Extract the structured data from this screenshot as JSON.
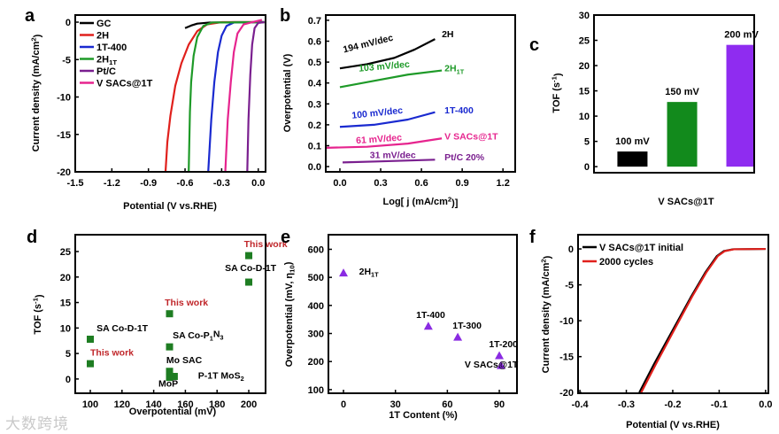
{
  "watermark": "大数跨境",
  "chart_data": [
    {
      "panel": "a",
      "type": "line",
      "xlabel": "Potential (V vs.RHE)",
      "ylabel": "Current density (mA/cm^{2})",
      "xlim": [
        -1.5,
        0.06
      ],
      "ylim": [
        -20,
        0.95
      ],
      "xticks": [
        -1.5,
        -1.2,
        -0.9,
        -0.6,
        -0.3,
        0.0
      ],
      "xtick_labels": [
        "-1.5",
        "-1.2",
        "-0.9",
        "-0.6",
        "-0.3",
        "0.0"
      ],
      "yticks": [
        0,
        -5,
        -10,
        -15,
        -20
      ],
      "ytick_labels": [
        "0",
        "-5",
        "-10",
        "-15",
        "-20"
      ],
      "legend": "top-left",
      "series": [
        {
          "name": "GC",
          "color": "#000000",
          "points": [
            [
              -0.6,
              -0.8
            ],
            [
              -0.55,
              -0.45
            ],
            [
              -0.5,
              -0.2
            ],
            [
              -0.4,
              -0.05
            ],
            [
              -0.2,
              0
            ],
            [
              0.05,
              0
            ]
          ]
        },
        {
          "name": "2H",
          "color": "#e0201c",
          "points": [
            [
              0.05,
              0
            ],
            [
              -0.3,
              0
            ],
            [
              -0.42,
              -0.3
            ],
            [
              -0.5,
              -1.2
            ],
            [
              -0.57,
              -3
            ],
            [
              -0.63,
              -5.5
            ],
            [
              -0.68,
              -8.5
            ],
            [
              -0.72,
              -12.5
            ],
            [
              -0.745,
              -16
            ],
            [
              -0.76,
              -20
            ]
          ]
        },
        {
          "name": "1T-400",
          "color": "#1a2ad0",
          "points": [
            [
              0.05,
              0
            ],
            [
              -0.2,
              -0.05
            ],
            [
              -0.26,
              -0.5
            ],
            [
              -0.3,
              -1.8
            ],
            [
              -0.33,
              -4
            ],
            [
              -0.36,
              -8
            ],
            [
              -0.385,
              -13
            ],
            [
              -0.41,
              -20
            ]
          ]
        },
        {
          "name": "2H_{1T}",
          "color": "#1e9a28",
          "points": [
            [
              0.05,
              0
            ],
            [
              -0.38,
              -0.05
            ],
            [
              -0.45,
              -0.5
            ],
            [
              -0.5,
              -2
            ],
            [
              -0.53,
              -4.5
            ],
            [
              -0.55,
              -8
            ],
            [
              -0.56,
              -12
            ],
            [
              -0.57,
              -20
            ]
          ]
        },
        {
          "name": "Pt/C",
          "color": "#7a1f8f",
          "points": [
            [
              0.05,
              0
            ],
            [
              0.0,
              -0.1
            ],
            [
              -0.03,
              -0.8
            ],
            [
              -0.05,
              -3
            ],
            [
              -0.065,
              -7
            ],
            [
              -0.08,
              -13
            ],
            [
              -0.09,
              -20
            ]
          ]
        },
        {
          "name": "V SACs@1T",
          "color": "#e6248e",
          "points": [
            [
              0.03,
              0.3
            ],
            [
              -0.05,
              0
            ],
            [
              -0.12,
              -0.3
            ],
            [
              -0.17,
              -1.5
            ],
            [
              -0.2,
              -4
            ],
            [
              -0.225,
              -8
            ],
            [
              -0.25,
              -13
            ],
            [
              -0.27,
              -20
            ]
          ]
        }
      ]
    },
    {
      "panel": "b",
      "type": "line",
      "xlabel": "Log[ j (mA/cm^{2})]",
      "ylabel": "Overpotential (V)",
      "xlim": [
        -0.104,
        1.29
      ],
      "ylim": [
        -0.025,
        0.725
      ],
      "xticks": [
        0.0,
        0.3,
        0.6,
        0.9,
        1.2
      ],
      "xtick_labels": [
        "0.0",
        "0.3",
        "0.6",
        "0.9",
        "1.2"
      ],
      "yticks": [
        0.0,
        0.1,
        0.2,
        0.3,
        0.4,
        0.5,
        0.6,
        0.7
      ],
      "ytick_labels": [
        "0.0",
        "0.1",
        "0.2",
        "0.3",
        "0.4",
        "0.5",
        "0.6",
        "0.7"
      ],
      "series": [
        {
          "name": "2H",
          "slope_label": "194 mV/dec",
          "color": "#000000",
          "points": [
            [
              0,
              0.47
            ],
            [
              0.2,
              0.49
            ],
            [
              0.4,
              0.52
            ],
            [
              0.55,
              0.56
            ],
            [
              0.7,
              0.61
            ]
          ],
          "name_pos": [
            0.75,
            0.62
          ],
          "slope_pos": [
            0.03,
            0.545
          ],
          "slope_rot": -14
        },
        {
          "name": "2H_{1T}",
          "slope_label": "103 mV/dec",
          "color": "#1e9a28",
          "points": [
            [
              0,
              0.38
            ],
            [
              0.25,
              0.41
            ],
            [
              0.5,
              0.44
            ],
            [
              0.75,
              0.46
            ]
          ],
          "name_pos": [
            0.77,
            0.455
          ],
          "slope_pos": [
            0.14,
            0.455
          ],
          "slope_rot": -5
        },
        {
          "name": "1T-400",
          "slope_label": "100 mV/dec",
          "color": "#1a2ad0",
          "points": [
            [
              0,
              0.19
            ],
            [
              0.25,
              0.2
            ],
            [
              0.5,
              0.225
            ],
            [
              0.7,
              0.26
            ]
          ],
          "name_pos": [
            0.77,
            0.255
          ],
          "slope_pos": [
            0.09,
            0.23
          ],
          "slope_rot": -6
        },
        {
          "name": "V SACs@1T",
          "slope_label": "61 mV/dec",
          "color": "#e6248e",
          "points": [
            [
              -0.1,
              0.09
            ],
            [
              0.2,
              0.095
            ],
            [
              0.5,
              0.11
            ],
            [
              0.75,
              0.135
            ]
          ],
          "name_pos": [
            0.77,
            0.13
          ],
          "slope_pos": [
            0.12,
            0.11
          ],
          "slope_rot": -4
        },
        {
          "name": "Pt/C 20%",
          "slope_label": "31 mV/dec",
          "color": "#7a1f8f",
          "points": [
            [
              0.02,
              0.02
            ],
            [
              0.3,
              0.025
            ],
            [
              0.7,
              0.033
            ]
          ],
          "name_pos": [
            0.77,
            0.03
          ],
          "slope_pos": [
            0.22,
            0.04
          ],
          "slope_rot": 0
        }
      ]
    },
    {
      "panel": "c",
      "type": "bar",
      "xlabel": "V SACs@1T",
      "ylabel": "TOF (s^{-1})",
      "ylim": [
        -1.2,
        30
      ],
      "yticks": [
        0,
        5,
        10,
        15,
        20,
        25,
        30
      ],
      "ytick_labels": [
        "0",
        "5",
        "10",
        "15",
        "20",
        "25",
        "30"
      ],
      "categories": [
        "100 mV",
        "150 mV",
        "200 mV"
      ],
      "values": [
        3.0,
        12.8,
        24.1
      ],
      "colors": [
        "#000000",
        "#128a1c",
        "#8f2cf0"
      ]
    },
    {
      "panel": "d",
      "type": "scatter",
      "xlabel": "Overpotential (mV)",
      "ylabel": "TOF (s^{-1})",
      "xlim": [
        90.5,
        210.6
      ],
      "ylim": [
        -2.8,
        28.3
      ],
      "xticks": [
        100,
        120,
        140,
        160,
        180,
        200
      ],
      "xtick_labels": [
        "100",
        "120",
        "140",
        "160",
        "180",
        "200"
      ],
      "yticks": [
        0,
        5,
        10,
        15,
        20,
        25
      ],
      "ytick_labels": [
        "0",
        "5",
        "10",
        "15",
        "20",
        "25"
      ],
      "marker_color": "#1e7d22",
      "highlight_color": "#c0262a",
      "points": [
        {
          "x": 100,
          "y": 3.0,
          "label": "This work",
          "highlight": true,
          "lx": 100,
          "ly": 4.6
        },
        {
          "x": 100,
          "y": 7.8,
          "label": "SA Co-D-1T",
          "highlight": false,
          "lx": 104,
          "ly": 9.4
        },
        {
          "x": 150,
          "y": 12.8,
          "label": "This work",
          "highlight": true,
          "lx": 147,
          "ly": 14.4
        },
        {
          "x": 150,
          "y": 6.3,
          "label": "SA Co-P_{1}N_{3}",
          "highlight": false,
          "lx": 152,
          "ly": 8.0
        },
        {
          "x": 150,
          "y": 1.5,
          "label": "Mo SAC",
          "highlight": false,
          "lx": 148,
          "ly": 3.1
        },
        {
          "x": 150,
          "y": 0.3,
          "label": "MoP",
          "highlight": false,
          "lx": 143,
          "ly": -1.5
        },
        {
          "x": 153,
          "y": 0.5,
          "label": "P-1T MoS_{2}",
          "highlight": false,
          "lx": 168,
          "ly": 0.1
        },
        {
          "x": 200,
          "y": 24.2,
          "label": "This work",
          "highlight": true,
          "lx": 197,
          "ly": 25.9
        },
        {
          "x": 200,
          "y": 19.0,
          "label": "SA Co-D-1T",
          "highlight": false,
          "lx": 185,
          "ly": 21.2
        }
      ]
    },
    {
      "panel": "e",
      "type": "scatter",
      "xlabel": "1T Content (%)",
      "ylabel": "Overpotential (mV, η_{10})",
      "xlim": [
        -8.7,
        100.2
      ],
      "ylim": [
        87,
        652
      ],
      "xticks": [
        0,
        30,
        60,
        90
      ],
      "xtick_labels": [
        "0",
        "30",
        "60",
        "90"
      ],
      "yticks": [
        100,
        200,
        300,
        400,
        500,
        600
      ],
      "ytick_labels": [
        "100",
        "200",
        "300",
        "400",
        "500",
        "600"
      ],
      "marker_color": "#8a2be2",
      "points": [
        {
          "x": 0,
          "y": 516,
          "label": "2H_{1T}",
          "lx": 9,
          "ly": 510
        },
        {
          "x": 49,
          "y": 326,
          "label": "1T-400",
          "lx": 42,
          "ly": 356
        },
        {
          "x": 66,
          "y": 287,
          "label": "1T-300",
          "lx": 63,
          "ly": 318
        },
        {
          "x": 90,
          "y": 221,
          "label": "1T-200",
          "lx": 84,
          "ly": 251
        },
        {
          "x": 91,
          "y": 186,
          "label": "V SACs@1T",
          "lx": 70,
          "ly": 178
        }
      ]
    },
    {
      "panel": "f",
      "type": "line",
      "xlabel": "Potential (V vs.RHE)",
      "ylabel": "Current density (mA/cm^{2})",
      "xlim": [
        -0.404,
        0.006
      ],
      "ylim": [
        -20.1,
        1.98
      ],
      "xticks": [
        -0.4,
        -0.3,
        -0.2,
        -0.1,
        0.0
      ],
      "xtick_labels": [
        "-0.4",
        "-0.3",
        "-0.2",
        "-0.1",
        "0.0"
      ],
      "yticks": [
        0,
        -5,
        -10,
        -15,
        -20
      ],
      "ytick_labels": [
        "0",
        "-5",
        "-10",
        "-15",
        "-20"
      ],
      "legend": "top-left",
      "series": [
        {
          "name": "V SACs@1T initial",
          "color": "#000000",
          "points": [
            [
              -0.272,
              -20
            ],
            [
              -0.24,
              -16
            ],
            [
              -0.2,
              -11.3
            ],
            [
              -0.16,
              -6.6
            ],
            [
              -0.13,
              -3.3
            ],
            [
              -0.105,
              -1.0
            ],
            [
              -0.09,
              -0.3
            ],
            [
              -0.07,
              -0.05
            ],
            [
              0,
              0
            ]
          ]
        },
        {
          "name": "2000 cycles",
          "color": "#e0201c",
          "points": [
            [
              -0.268,
              -20
            ],
            [
              -0.236,
              -16
            ],
            [
              -0.197,
              -11.3
            ],
            [
              -0.158,
              -6.6
            ],
            [
              -0.128,
              -3.3
            ],
            [
              -0.103,
              -1.0
            ],
            [
              -0.088,
              -0.3
            ],
            [
              -0.068,
              -0.05
            ],
            [
              0,
              0
            ]
          ]
        }
      ]
    }
  ]
}
